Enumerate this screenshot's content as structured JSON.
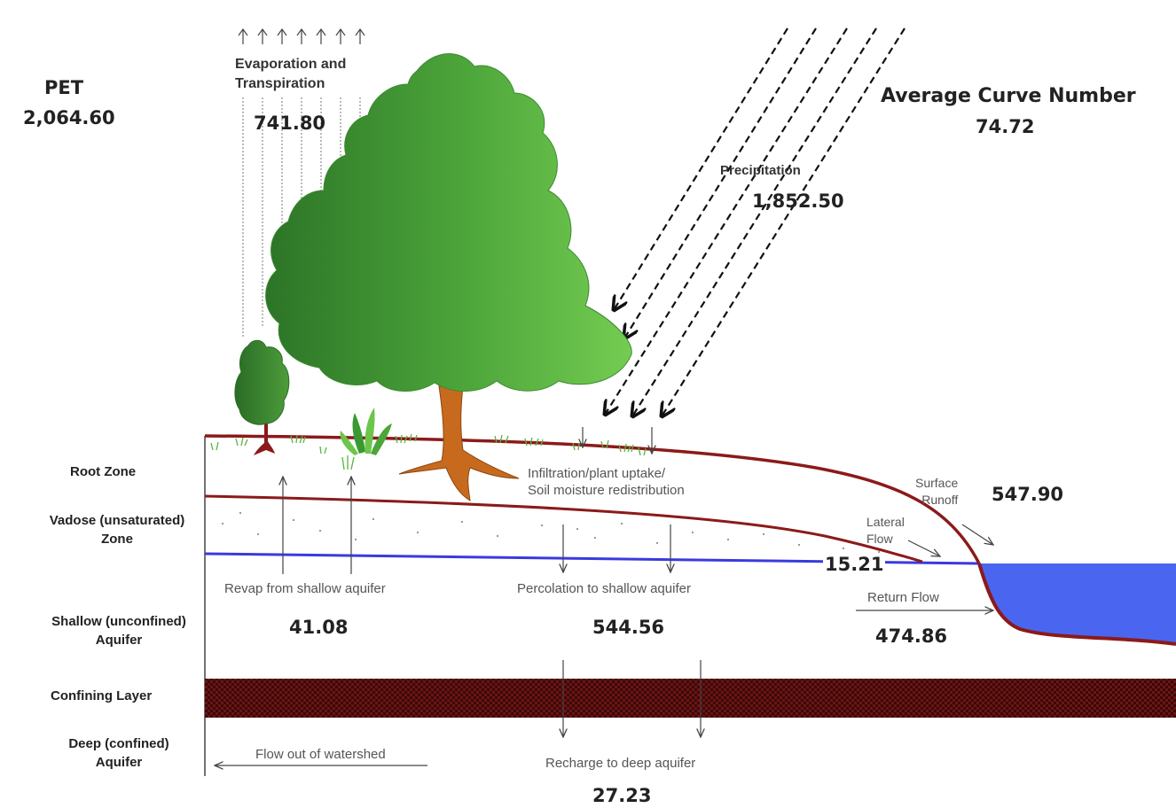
{
  "pet": {
    "label": "PET",
    "value": "2,064.60"
  },
  "curve_number": {
    "label": "Average Curve Number",
    "value": "74.72"
  },
  "evapotranspiration": {
    "label_line1": "Evaporation and",
    "label_line2": "Transpiration",
    "value": "741.80"
  },
  "precipitation": {
    "label": "Precipitation",
    "value": "1,852.50"
  },
  "zones": {
    "root": "Root Zone",
    "vadose_line1": "Vadose (unsaturated)",
    "vadose_line2": "Zone",
    "shallow_line1": "Shallow (unconfined)",
    "shallow_line2": "Aquifer",
    "confining": "Confining Layer",
    "deep_line1": "Deep (confined)",
    "deep_line2": "Aquifer"
  },
  "infiltration": {
    "line1": "Infiltration/plant uptake/",
    "line2": "Soil moisture redistribution"
  },
  "surface_runoff": {
    "line1": "Surface",
    "line2": "Runoff",
    "value": "547.90"
  },
  "lateral_flow": {
    "line1": "Lateral",
    "line2": "Flow",
    "value": "15.21"
  },
  "return_flow": {
    "label": "Return Flow",
    "value": "474.86"
  },
  "revap": {
    "label": "Revap from shallow aquifer",
    "value": "41.08"
  },
  "percolation": {
    "label": "Percolation to shallow aquifer",
    "value": "544.56"
  },
  "recharge": {
    "label": "Recharge to deep aquifer",
    "value": "27.23"
  },
  "flow_out": {
    "label": "Flow out of watershed"
  },
  "colors": {
    "soil_line": "#8b1a1a",
    "water": "#4a66f0",
    "water_table": "#3a3adf",
    "tree_dark": "#2f7a2a",
    "tree_light": "#6cc64a",
    "trunk": "#c86a1e",
    "confining": "#5a1010"
  }
}
